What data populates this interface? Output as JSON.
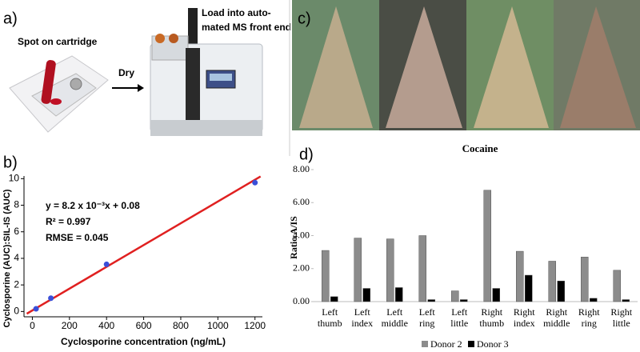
{
  "panels": {
    "a": {
      "label": "a)",
      "spot": "Spot on cartridge",
      "dry": "Dry",
      "load": [
        "Load into auto-",
        "mated MS front end"
      ]
    },
    "c": {
      "label": "c)"
    }
  },
  "chart_data": [
    {
      "type": "scatter",
      "label": "b)",
      "xlabel": "Cyclosporine concentration (ng/mL)",
      "ylabel": "Cyclosporine (AUC):SIL-IS (AUC)",
      "annotations": [
        "y = 8.2 x 10⁻³x + 0.08",
        "R² = 0.997",
        "RMSE = 0.045"
      ],
      "xlim": [
        -45,
        1240
      ],
      "ylim": [
        -0.4,
        10.2
      ],
      "xticks": [
        0,
        200,
        400,
        600,
        800,
        1000,
        1200
      ],
      "yticks": [
        0,
        2,
        4,
        6,
        8,
        10
      ],
      "series": [
        {
          "mode": "markers",
          "color": "#3a4fd8",
          "x": [
            20,
            100,
            400,
            1200
          ],
          "values": [
            0.2,
            1.0,
            3.55,
            9.7
          ]
        },
        {
          "mode": "line",
          "color": "#e02020",
          "x": [
            -30,
            1230
          ],
          "values": [
            -0.166,
            10.166
          ]
        }
      ]
    },
    {
      "type": "bar",
      "label": "d)",
      "title": "Cocaine",
      "ylabel": "Ratio A/IS",
      "categories": [
        "Left thumb",
        "Left index",
        "Left middle",
        "Left ring",
        "Left little",
        "Right thumb",
        "Right index",
        "Right middle",
        "Right ring",
        "Right little"
      ],
      "ylim": [
        0,
        8
      ],
      "yticks": [
        {
          "value": 0,
          "label": "0.00"
        },
        {
          "value": 2,
          "label": "2.00"
        },
        {
          "value": 4,
          "label": "4.00"
        },
        {
          "value": 6,
          "label": "6.00"
        },
        {
          "value": 8,
          "label": "8.00"
        }
      ],
      "series": [
        {
          "name": "Donor 2",
          "color": "#8c8c8c",
          "values": [
            3.1,
            3.85,
            3.8,
            4.0,
            0.65,
            6.75,
            3.05,
            2.45,
            2.7,
            1.9
          ]
        },
        {
          "name": "Donor 3",
          "color": "#000000",
          "values": [
            0.3,
            0.8,
            0.85,
            0.12,
            0.12,
            0.8,
            1.6,
            1.25,
            0.2,
            0.12
          ]
        }
      ]
    }
  ]
}
